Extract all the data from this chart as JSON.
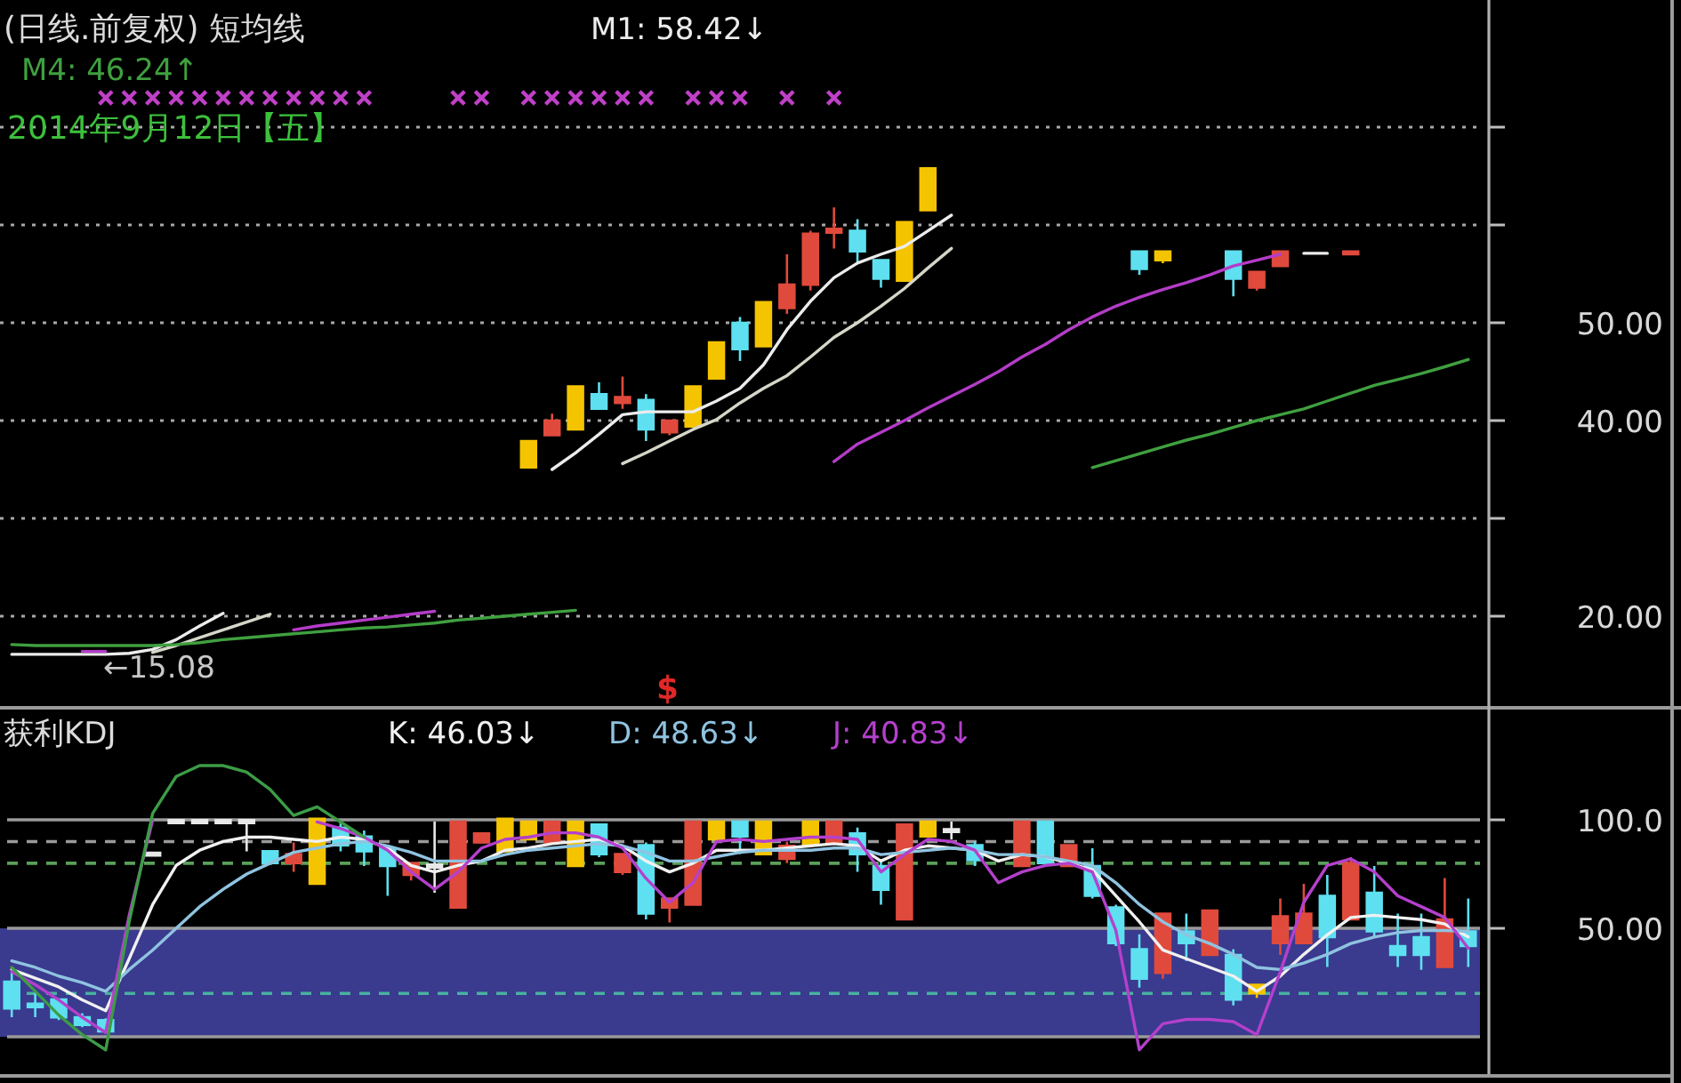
{
  "chart_data": [
    {
      "type": "candlestick",
      "title": "(日线.前复权) 短均线",
      "categories": [
        null,
        null,
        null,
        null,
        null,
        null,
        null,
        null,
        null,
        null,
        null,
        null,
        null,
        null,
        null,
        null,
        null,
        null,
        null,
        null,
        null,
        null,
        null,
        null,
        null,
        null,
        null,
        null,
        null,
        null,
        null,
        null,
        null,
        null,
        null,
        null,
        null,
        null,
        null,
        null,
        null,
        null,
        null,
        null,
        null,
        null,
        null,
        null,
        null,
        null,
        null,
        null,
        null,
        null,
        null,
        null,
        null,
        null,
        null,
        null,
        null,
        null,
        null
      ],
      "ohlc": [
        null,
        null,
        null,
        null,
        null,
        null,
        null,
        null,
        null,
        null,
        null,
        null,
        null,
        null,
        null,
        null,
        null,
        null,
        null,
        null,
        null,
        null,
        [
          35.2,
          37.9,
          35.2,
          37.9
        ],
        [
          38.5,
          40.7,
          38.5,
          40.0
        ],
        [
          39.1,
          43.5,
          39.1,
          43.5
        ],
        [
          42.7,
          43.9,
          41.2,
          41.2
        ],
        [
          41.8,
          44.5,
          41.2,
          42.4
        ],
        [
          42.1,
          42.7,
          37.9,
          39.1
        ],
        [
          38.8,
          40.0,
          38.5,
          40.0
        ],
        [
          39.4,
          43.5,
          39.4,
          43.5
        ],
        [
          44.3,
          48.0,
          44.3,
          48.0
        ],
        [
          50.0,
          50.6,
          46.1,
          47.3
        ],
        [
          47.6,
          52.1,
          47.6,
          52.1
        ],
        [
          51.5,
          57.0,
          50.9,
          53.9
        ],
        [
          53.9,
          59.4,
          53.3,
          59.1
        ],
        [
          59.2,
          61.8,
          57.6,
          59.6
        ],
        [
          59.4,
          60.6,
          56.1,
          57.3
        ],
        [
          56.4,
          56.4,
          53.6,
          54.5
        ],
        [
          54.3,
          60.3,
          54.3,
          60.3
        ],
        [
          61.5,
          65.8,
          61.5,
          65.8
        ],
        null,
        null,
        null,
        null,
        null,
        null,
        null,
        null,
        [
          57.3,
          57.3,
          54.9,
          55.5
        ],
        [
          56.4,
          57.3,
          56.1,
          57.3
        ],
        null,
        null,
        [
          57.3,
          57.3,
          52.7,
          54.5
        ],
        [
          53.6,
          55.2,
          53.3,
          55.2
        ],
        [
          55.8,
          57.3,
          55.8,
          57.3
        ],
        null,
        null,
        [
          57.0,
          57.3,
          57.0,
          57.3
        ],
        null,
        null,
        null,
        null,
        null
      ],
      "colors": [
        null,
        null,
        null,
        null,
        null,
        null,
        null,
        null,
        null,
        null,
        null,
        null,
        null,
        null,
        null,
        null,
        null,
        null,
        null,
        null,
        null,
        null,
        "#f5c400",
        "#e04a3c",
        "#f5c400",
        "#5ee0f0",
        "#e04a3c",
        "#5ee0f0",
        "#e04a3c",
        "#f5c400",
        "#f5c400",
        "#5ee0f0",
        "#f5c400",
        "#e04a3c",
        "#e04a3c",
        "#e04a3c",
        "#5ee0f0",
        "#5ee0f0",
        "#f5c400",
        "#f5c400",
        null,
        null,
        null,
        null,
        null,
        null,
        null,
        null,
        "#5ee0f0",
        "#f5c400",
        null,
        null,
        "#5ee0f0",
        "#e04a3c",
        "#e04a3c",
        null,
        null,
        "#e04a3c",
        null,
        null,
        null,
        null,
        null
      ],
      "series": [
        {
          "name": "M1: 58.42↓",
          "type": "line",
          "color": "#ececec",
          "values": [
            16.1,
            16.1,
            16.1,
            16.1,
            16.1,
            16.2,
            16.6,
            17.6,
            19.0,
            20.3,
            null,
            null,
            null,
            null,
            null,
            null,
            null,
            null,
            null,
            null,
            null,
            null,
            null,
            35.0,
            36.7,
            38.6,
            40.6,
            40.9,
            40.9,
            40.9,
            42.0,
            43.3,
            45.7,
            49.3,
            52.2,
            54.6,
            56.1,
            57.0,
            57.8,
            59.4,
            61.0,
            null,
            null,
            null,
            null,
            null,
            null,
            null,
            null,
            null,
            null,
            null,
            null,
            null,
            null,
            57.1,
            57.1,
            null,
            null,
            null,
            null,
            null,
            null
          ]
        },
        {
          "type": "line",
          "color": "#d6d6c8",
          "values": [
            null,
            null,
            null,
            null,
            null,
            null,
            16.3,
            17.0,
            17.8,
            18.6,
            19.4,
            20.2,
            null,
            null,
            null,
            null,
            null,
            null,
            null,
            null,
            null,
            null,
            null,
            null,
            null,
            null,
            35.6,
            36.7,
            37.9,
            39.1,
            40.1,
            41.8,
            43.3,
            44.6,
            46.5,
            48.5,
            50.0,
            51.7,
            53.5,
            55.6,
            57.6,
            null,
            null,
            null,
            null,
            null,
            null,
            null,
            null,
            null,
            null,
            null,
            null,
            null,
            null,
            null,
            null,
            null,
            null,
            null,
            null,
            null,
            null
          ]
        },
        {
          "type": "line",
          "color": "#b43cc8",
          "values": [
            null,
            null,
            null,
            16.4,
            16.4,
            null,
            null,
            null,
            null,
            null,
            null,
            null,
            18.6,
            19.0,
            19.3,
            19.6,
            19.9,
            20.2,
            20.5,
            null,
            null,
            null,
            null,
            null,
            null,
            null,
            null,
            null,
            null,
            null,
            null,
            null,
            null,
            null,
            null,
            35.8,
            37.6,
            38.8,
            40.0,
            41.3,
            42.5,
            43.7,
            45.0,
            46.5,
            47.8,
            49.3,
            50.6,
            51.7,
            52.6,
            53.4,
            54.1,
            54.9,
            55.8,
            56.4,
            57.0,
            null,
            null,
            null,
            null,
            null,
            null,
            null,
            null
          ]
        },
        {
          "name": "M4: 46.24↑",
          "type": "line",
          "color": "#3fa03f",
          "values": [
            17.1,
            17.0,
            17.0,
            17.0,
            17.0,
            17.0,
            17.0,
            17.1,
            17.3,
            17.6,
            17.8,
            18.0,
            18.2,
            18.4,
            18.6,
            18.8,
            18.9,
            19.1,
            19.3,
            19.6,
            19.8,
            20.0,
            20.2,
            20.4,
            20.6,
            null,
            null,
            null,
            null,
            null,
            null,
            null,
            null,
            null,
            null,
            null,
            null,
            null,
            null,
            null,
            null,
            null,
            null,
            null,
            null,
            null,
            35.2,
            35.9,
            36.6,
            37.3,
            38.0,
            38.6,
            39.3,
            40.0,
            40.6,
            41.2,
            42.0,
            42.8,
            43.6,
            44.2,
            44.8,
            45.5,
            46.24
          ]
        },
        {
          "type": "scatter",
          "marker": "cross",
          "color": "#c040c8",
          "values": [
            null,
            null,
            null,
            null,
            73,
            73,
            73,
            73,
            73,
            73,
            73,
            73,
            73,
            73,
            73,
            73,
            null,
            null,
            null,
            73,
            73,
            null,
            73,
            73,
            73,
            73,
            73,
            73,
            null,
            73,
            73,
            73,
            null,
            73,
            null,
            73,
            null,
            null,
            null,
            null,
            null,
            null,
            null,
            null,
            null,
            null,
            null,
            null,
            null,
            null,
            null,
            null,
            null,
            null,
            null,
            null,
            null,
            null,
            null,
            null,
            null,
            null,
            null
          ]
        }
      ],
      "ylim": [
        11,
        83
      ],
      "yticks": [
        {
          "value": 20,
          "label": "20.00"
        },
        {
          "value": 30,
          "label": null
        },
        {
          "value": 40,
          "label": "40.00"
        },
        {
          "value": 50,
          "label": "50.00"
        },
        {
          "value": 60,
          "label": null
        },
        {
          "value": 70,
          "label": null
        }
      ],
      "grid": "y",
      "legend": "top left",
      "annotations": [
        "2014年9月12日【五】",
        "$",
        "←15.08"
      ]
    },
    {
      "type": "candlestick",
      "title": "获利KDJ",
      "categories": [
        null,
        null,
        null,
        null,
        null,
        null,
        null,
        null,
        null,
        null,
        null,
        null,
        null,
        null,
        null,
        null,
        null,
        null,
        null,
        null,
        null,
        null,
        null,
        null,
        null,
        null,
        null,
        null,
        null,
        null,
        null,
        null,
        null,
        null,
        null,
        null,
        null,
        null,
        null,
        null,
        null,
        null,
        null,
        null,
        null,
        null,
        null,
        null,
        null,
        null,
        null,
        null,
        null,
        null,
        null,
        null,
        null,
        null,
        null,
        null,
        null,
        null,
        null
      ],
      "ohlc": [
        [
          25.4,
          29.5,
          9.0,
          13.1
        ],
        [
          15.3,
          21.3,
          9.0,
          13.7
        ],
        [
          17.2,
          17.2,
          7.7,
          9.0
        ],
        [
          9.0,
          10.9,
          4.4,
          5.5
        ],
        [
          7.7,
          8.5,
          1.5,
          2.5
        ],
        null,
        [
          84.2,
          84.2,
          84.2,
          84.2
        ],
        [
          99.2,
          99.2,
          99.2,
          99.2
        ],
        [
          99.2,
          99.2,
          99.2,
          99.2
        ],
        [
          99.2,
          99.2,
          99.2,
          99.2
        ],
        [
          99.2,
          99.2,
          85.5,
          99.2
        ],
        [
          85.5,
          86.0,
          80.1,
          80.1
        ],
        [
          80.1,
          89.6,
          76.0,
          84.2
        ],
        [
          70.5,
          100.5,
          70.5,
          100.5
        ],
        [
          96.4,
          99.2,
          85.5,
          88.3
        ],
        [
          92.3,
          95.1,
          78.7,
          85.5
        ],
        [
          86.9,
          86.9,
          65.0,
          78.7
        ],
        [
          74.6,
          80.1,
          72.0,
          80.1
        ],
        [
          78.7,
          99.2,
          66.4,
          78.7
        ],
        [
          59.6,
          99.2,
          59.6,
          99.2
        ],
        [
          89.6,
          93.7,
          89.6,
          93.7
        ],
        [
          85.5,
          100.5,
          85.5,
          100.5
        ],
        [
          91.0,
          99.2,
          91.0,
          99.2
        ],
        [
          89.6,
          99.2,
          89.6,
          99.2
        ],
        [
          78.7,
          99.2,
          78.7,
          99.2
        ],
        [
          97.8,
          97.8,
          82.8,
          84.2
        ],
        [
          76.0,
          84.2,
          74.6,
          84.2
        ],
        [
          88.3,
          89.6,
          54.1,
          56.8
        ],
        [
          59.6,
          63.7,
          52.7,
          63.7
        ],
        [
          60.9,
          99.2,
          60.9,
          99.2
        ],
        [
          91.0,
          99.2,
          91.0,
          99.2
        ],
        [
          99.2,
          99.2,
          84.2,
          92.3
        ],
        [
          84.2,
          99.2,
          84.2,
          99.2
        ],
        [
          82.0,
          90.0,
          80.0,
          88.0
        ],
        [
          88.3,
          99.2,
          88.3,
          99.2
        ],
        [
          89.6,
          99.2,
          89.6,
          99.2
        ],
        [
          93.7,
          96.4,
          76.0,
          84.2
        ],
        [
          78.7,
          81.4,
          60.9,
          67.8
        ],
        [
          54.1,
          97.8,
          54.1,
          97.8
        ],
        [
          92.3,
          99.2,
          92.3,
          99.2
        ],
        [
          95.0,
          99.2,
          91.0,
          95.0
        ],
        [
          88.3,
          90.0,
          78.7,
          81.4
        ],
        null,
        [
          78.7,
          99.2,
          78.7,
          99.2
        ],
        [
          99.2,
          99.2,
          80.1,
          80.1
        ],
        [
          78.7,
          88.3,
          78.7,
          88.3
        ],
        [
          78.7,
          86.9,
          63.7,
          65.0
        ],
        [
          59.6,
          60.9,
          41.8,
          43.2
        ],
        [
          40.4,
          47.3,
          22.7,
          26.8
        ],
        [
          29.5,
          56.8,
          26.8,
          56.8
        ],
        [
          48.6,
          56.8,
          35.0,
          43.2
        ],
        [
          37.7,
          58.2,
          37.7,
          58.2
        ],
        [
          37.7,
          40.4,
          14.5,
          17.2
        ],
        [
          20.0,
          24.0,
          18.0,
          24.0
        ],
        [
          43.2,
          63.7,
          37.7,
          55.5
        ],
        [
          43.2,
          70.5,
          43.2,
          56.8
        ],
        [
          65.0,
          74.6,
          32.2,
          45.9
        ],
        [
          54.1,
          82.8,
          54.1,
          80.1
        ],
        [
          66.4,
          78.7,
          45.9,
          48.6
        ],
        [
          41.8,
          56.8,
          32.2,
          37.7
        ],
        [
          45.9,
          56.8,
          30.9,
          37.7
        ],
        [
          32.2,
          73.2,
          32.2,
          54.1
        ],
        [
          48.6,
          63.7,
          32.2,
          41.8
        ]
      ],
      "colors": [
        "#5ee0f0",
        "#5ee0f0",
        "#5ee0f0",
        "#5ee0f0",
        "#5ee0f0",
        null,
        "#e8e8e8",
        "#e8e8e8",
        "#e8e8e8",
        "#e8e8e8",
        "#e8e8e8",
        "#5ee0f0",
        "#e04a3c",
        "#f5c400",
        "#5ee0f0",
        "#5ee0f0",
        "#5ee0f0",
        "#e04a3c",
        "#e8e8e8",
        "#e04a3c",
        "#e04a3c",
        "#f5c400",
        "#f5c400",
        "#e04a3c",
        "#f5c400",
        "#5ee0f0",
        "#e04a3c",
        "#5ee0f0",
        "#e04a3c",
        "#e04a3c",
        "#f5c400",
        "#5ee0f0",
        "#f5c400",
        "#e04a3c",
        "#f5c400",
        "#e04a3c",
        "#5ee0f0",
        "#5ee0f0",
        "#e04a3c",
        "#f5c400",
        "#e8e8e8",
        "#5ee0f0",
        null,
        "#e04a3c",
        "#5ee0f0",
        "#e04a3c",
        "#5ee0f0",
        "#5ee0f0",
        "#5ee0f0",
        "#e04a3c",
        "#5ee0f0",
        "#e04a3c",
        "#5ee0f0",
        "#f5c400",
        "#e04a3c",
        "#e04a3c",
        "#5ee0f0",
        "#e04a3c",
        "#5ee0f0",
        "#5ee0f0",
        "#5ee0f0",
        "#e04a3c",
        "#5ee0f0"
      ],
      "series": [
        {
          "name": "K: 46.03↓",
          "type": "line",
          "color": "#f0f0f0",
          "values": [
            31,
            27,
            23,
            17,
            12,
            36,
            61,
            79,
            86,
            90,
            92,
            92,
            91,
            90,
            92,
            91,
            87,
            79,
            76,
            79,
            81,
            86,
            87,
            89,
            90,
            91,
            88,
            81,
            76,
            80,
            86,
            86,
            86,
            87,
            88,
            89,
            88,
            81,
            86,
            88,
            87,
            86,
            81,
            84,
            83,
            80,
            77,
            65,
            53,
            40,
            36,
            32,
            28,
            21,
            28,
            38,
            47,
            55,
            56,
            55,
            54,
            52,
            46.03
          ]
        },
        {
          "name": "D: 48.63↓",
          "type": "line",
          "color": "#8fc3e0",
          "values": [
            35,
            32,
            28,
            25,
            21,
            31,
            40,
            50,
            60,
            68,
            75,
            80,
            85,
            87,
            89,
            90,
            88,
            85,
            81,
            81,
            81,
            84,
            86,
            87,
            88,
            89,
            88,
            85,
            81,
            81,
            83,
            85,
            86,
            86,
            86,
            87,
            87,
            84,
            85,
            86,
            87,
            86,
            84,
            84,
            83,
            81,
            79,
            71,
            61,
            53,
            47,
            43,
            38,
            32,
            31,
            34,
            38,
            43,
            46,
            48,
            49,
            49,
            48.63
          ]
        },
        {
          "name": "J: 40.83↓",
          "type": "line",
          "color": "#b440cc",
          "values": [
            30,
            24,
            17,
            9,
            2,
            56,
            100,
            null,
            null,
            null,
            null,
            null,
            null,
            99,
            96,
            92,
            86,
            76,
            68,
            76,
            87,
            91,
            92,
            94,
            94,
            92,
            87,
            73,
            62,
            71,
            90,
            91,
            90,
            91,
            92,
            92,
            91,
            76,
            84,
            91,
            90,
            86,
            71,
            76,
            79,
            80,
            76,
            49,
            -6,
            6,
            8,
            8,
            7,
            1,
            30,
            62,
            79,
            82,
            76,
            65,
            60,
            55,
            40.83
          ]
        },
        {
          "type": "line",
          "color": "#3c9c46",
          "values": [
            32,
            21,
            10,
            1,
            -6,
            53,
            103,
            120,
            125,
            125,
            122,
            114,
            102,
            106,
            99,
            92,
            null,
            null,
            null,
            null,
            null,
            null,
            null,
            null,
            null,
            null,
            null,
            null,
            null,
            null,
            null,
            null,
            null,
            null,
            null,
            null,
            null,
            null,
            null,
            null,
            null,
            null,
            null,
            null,
            null,
            null,
            null,
            null,
            null,
            null,
            null,
            null,
            null,
            null,
            null,
            null,
            null,
            null,
            null,
            null,
            null,
            null,
            null
          ]
        }
      ],
      "ylim": [
        -18,
        150
      ],
      "yticks": [
        {
          "value": 50,
          "label": "50.00"
        },
        {
          "value": 100,
          "label": "100.0"
        }
      ],
      "bands": [
        {
          "axis": "y",
          "from": 0,
          "to": 50,
          "color": "#3a3a8e"
        }
      ],
      "ref_lines": [
        {
          "axis": "y",
          "value": 100,
          "color": "#9a9a9a",
          "line_style": "solid"
        },
        {
          "axis": "y",
          "value": 90,
          "color": "#9a9a9a",
          "line_style": "dashed"
        },
        {
          "axis": "y",
          "value": 80,
          "color": "#5aa05a",
          "line_style": "dashed"
        },
        {
          "axis": "y",
          "value": 50,
          "color": "#9a9a9a",
          "line_style": "solid"
        },
        {
          "axis": "y",
          "value": 20,
          "color": "#48b0a0",
          "line_style": "dashed"
        },
        {
          "axis": "y",
          "value": 0,
          "color": "#9a9a9a",
          "line_style": "solid"
        }
      ],
      "legend": "top left"
    }
  ]
}
